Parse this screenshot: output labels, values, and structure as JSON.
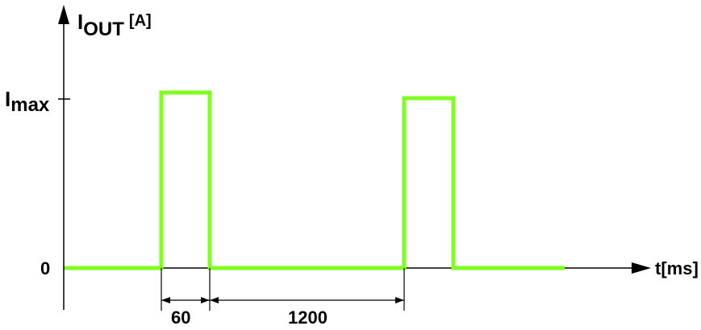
{
  "y_axis": {
    "symbol": "I",
    "subscript": "OUT",
    "unit": "[A]"
  },
  "x_axis": {
    "label": "t[ms]"
  },
  "ticks": {
    "max_symbol": "I",
    "max_subscript": "max",
    "zero": "0"
  },
  "dimensions": {
    "pulse_width": "60",
    "pause": "1200"
  },
  "colors": {
    "signal": "#7fff1f",
    "axis": "#000000"
  }
}
